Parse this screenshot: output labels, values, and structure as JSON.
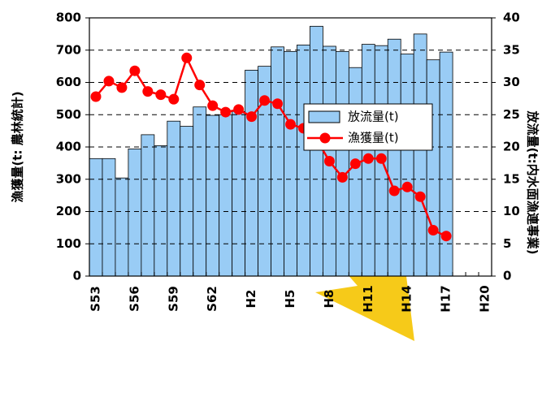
{
  "chart_data": {
    "type": "bar_line",
    "categories": [
      "S53",
      null,
      null,
      "S56",
      null,
      null,
      "S59",
      null,
      null,
      "S62",
      null,
      null,
      "H2",
      null,
      null,
      "H5",
      null,
      null,
      "H8",
      null,
      null,
      "H11",
      null,
      null,
      "H14",
      null,
      null,
      "H17",
      null,
      null,
      "H20"
    ],
    "series": [
      {
        "name": "放流量(t)",
        "type": "bar",
        "axis": "y2",
        "color": "#99ccf5",
        "values": [
          18.2,
          18.2,
          15.2,
          19.7,
          21.9,
          20.2,
          24,
          23.2,
          26.2,
          24.9,
          25,
          25.5,
          31.9,
          32.5,
          35.5,
          34.8,
          35.8,
          38.7,
          35.6,
          34.8,
          32.3,
          35.9,
          35.7,
          36.7,
          34.4,
          37.5,
          33.5,
          34.7,
          null,
          null,
          null
        ]
      },
      {
        "name": "漁獲量(t)",
        "type": "line",
        "axis": "y",
        "color": "#ff0000",
        "values": [
          556,
          604,
          584,
          636,
          572,
          562,
          548,
          676,
          592,
          528,
          508,
          516,
          494,
          544,
          534,
          470,
          458,
          424,
          356,
          306,
          348,
          364,
          364,
          264,
          276,
          246,
          142,
          124,
          null,
          null,
          null
        ]
      }
    ],
    "y_label": "漁獲量(t: 農林統計)",
    "y2_label": "放流量(t:内水面漁連事業)",
    "ylim": [
      0,
      800
    ],
    "yticks": [
      0,
      100,
      200,
      300,
      400,
      500,
      600,
      700,
      800
    ],
    "y2lim": [
      0,
      40
    ],
    "y2ticks": [
      0,
      5,
      10,
      15,
      20,
      25,
      30,
      35,
      40
    ],
    "grid": true
  }
}
